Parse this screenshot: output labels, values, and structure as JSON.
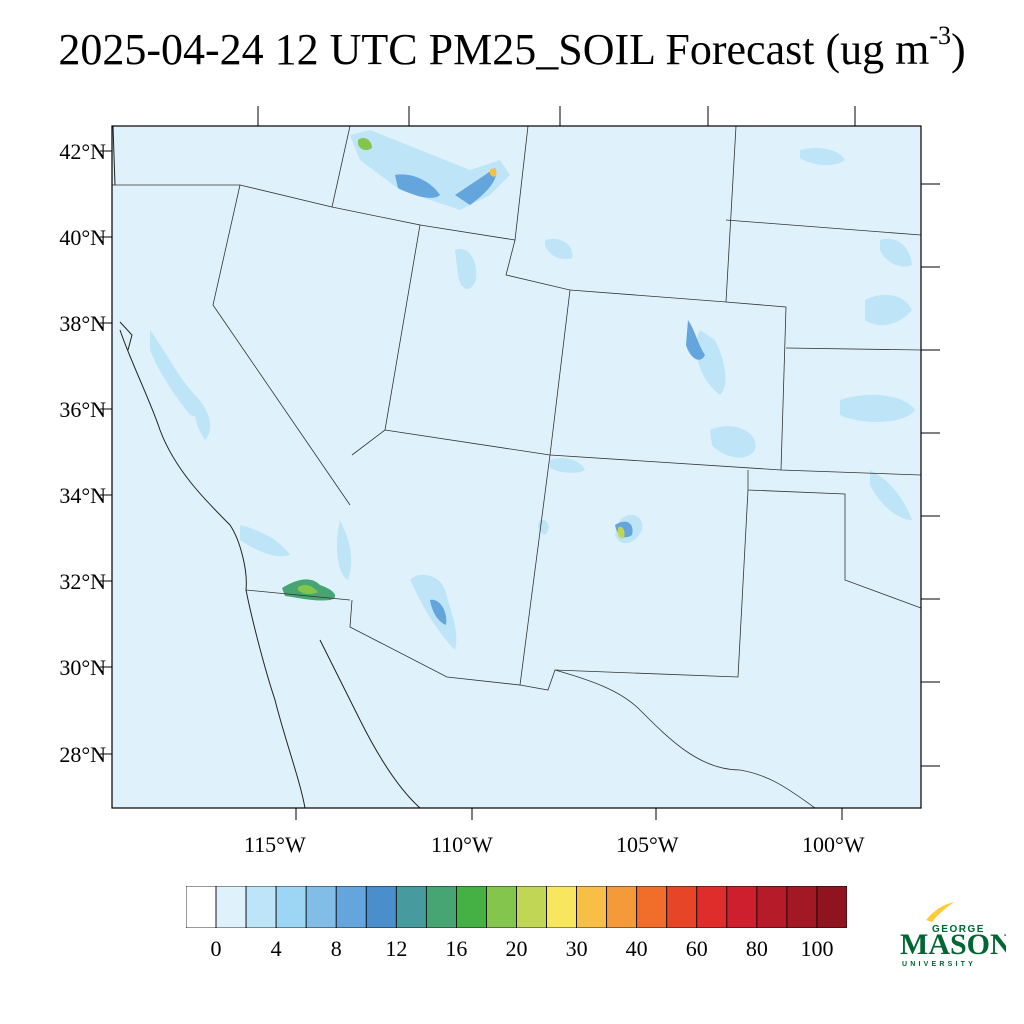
{
  "title": {
    "text": "2025-04-24 12 UTC PM25_SOIL Forecast (ug m",
    "unit_exponent": "-3",
    "suffix": ")"
  },
  "map": {
    "region": "Southwestern United States and northern Mexico",
    "background_color": "#dff2fb",
    "lat_labels": [
      "42°N",
      "40°N",
      "38°N",
      "36°N",
      "34°N",
      "32°N",
      "30°N",
      "28°N"
    ],
    "lon_labels": [
      "115°W",
      "110°W",
      "105°W",
      "100°W"
    ],
    "hotspots": [
      {
        "place": "Salton Sea / Yuma area",
        "lat": 31.8,
        "lon": -114.4,
        "max_value": 20
      },
      {
        "place": "Southern Idaho / Snake River Plain",
        "lat": 41.4,
        "lon": -112.5,
        "max_value": 16
      },
      {
        "place": "Southern New Mexico",
        "lat": 33.0,
        "lon": -105.8,
        "max_value": 20
      },
      {
        "place": "Colorado San Luis Valley",
        "lat": 37.7,
        "lon": -105.8,
        "max_value": 12
      }
    ]
  },
  "colorbar": {
    "labels": [
      "0",
      "4",
      "8",
      "12",
      "16",
      "20",
      "30",
      "40",
      "60",
      "80",
      "100"
    ],
    "colors": [
      "#ffffff",
      "#dff2fb",
      "#bde5f7",
      "#9dd6f4",
      "#81bde6",
      "#63a5dc",
      "#4a8ecc",
      "#479b9e",
      "#47a573",
      "#45b144",
      "#83c54d",
      "#c1d654",
      "#f7e65e",
      "#f8bf46",
      "#f49a38",
      "#f06d2a",
      "#e64528",
      "#de2d2b",
      "#cd1f2d",
      "#b51b28",
      "#a21824",
      "#8f1420"
    ]
  },
  "logo": {
    "line1": "GEORGE",
    "line2": "MASON",
    "line3": "UNIVERSITY",
    "green": "#006633",
    "gold": "#ffcc33"
  }
}
